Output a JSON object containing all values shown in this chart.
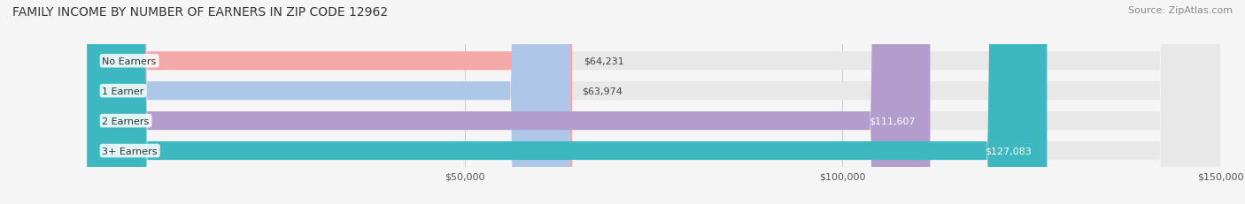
{
  "title": "FAMILY INCOME BY NUMBER OF EARNERS IN ZIP CODE 12962",
  "source": "Source: ZipAtlas.com",
  "categories": [
    "No Earners",
    "1 Earner",
    "2 Earners",
    "3+ Earners"
  ],
  "values": [
    64231,
    63974,
    111607,
    127083
  ],
  "bar_colors": [
    "#f4a9a8",
    "#aec6e8",
    "#b39dcc",
    "#3db8c0"
  ],
  "label_colors": [
    "#555555",
    "#555555",
    "#ffffff",
    "#ffffff"
  ],
  "xlim": [
    0,
    150000
  ],
  "xticks": [
    50000,
    100000,
    150000
  ],
  "xtick_labels": [
    "$50,000",
    "$100,000",
    "$150,000"
  ],
  "bg_color": "#f0f0f0",
  "bar_bg_color": "#e8e8e8",
  "title_fontsize": 10,
  "source_fontsize": 8,
  "label_fontsize": 8,
  "category_fontsize": 8,
  "bar_height": 0.62,
  "figsize": [
    14.06,
    2.32
  ],
  "dpi": 100
}
